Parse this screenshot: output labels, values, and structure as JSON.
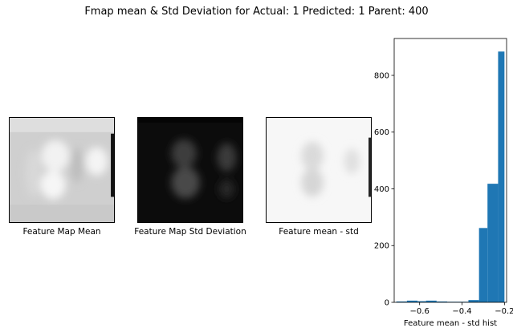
{
  "figure": {
    "title": "Fmap mean & Std Deviation for Actual: 1 Predicted: 1 Parent: 400"
  },
  "panels": [
    {
      "label": "Feature Map Mean"
    },
    {
      "label": "Feature Map Std Deviation"
    },
    {
      "label": "Feature mean - std"
    }
  ],
  "chart_data": {
    "type": "bar",
    "xlabel": "Feature mean - std hist",
    "ylabel": "",
    "xlim": [
      -0.72,
      -0.19
    ],
    "ylim": [
      0,
      930
    ],
    "xticks": [
      -0.6,
      -0.4,
      -0.2
    ],
    "xtick_labels": [
      "−0.6",
      "−0.4",
      "−0.2"
    ],
    "yticks": [
      0,
      200,
      400,
      600,
      800
    ],
    "ytick_labels": [
      "0",
      "200",
      "400",
      "600",
      "800"
    ],
    "bin_edges": [
      -0.71,
      -0.66,
      -0.61,
      -0.57,
      -0.52,
      -0.47,
      -0.42,
      -0.37,
      -0.32,
      -0.28,
      -0.23,
      -0.2
    ],
    "values": [
      3,
      6,
      4,
      6,
      3,
      2,
      2,
      8,
      262,
      418,
      884
    ],
    "color": "#1f77b4"
  }
}
